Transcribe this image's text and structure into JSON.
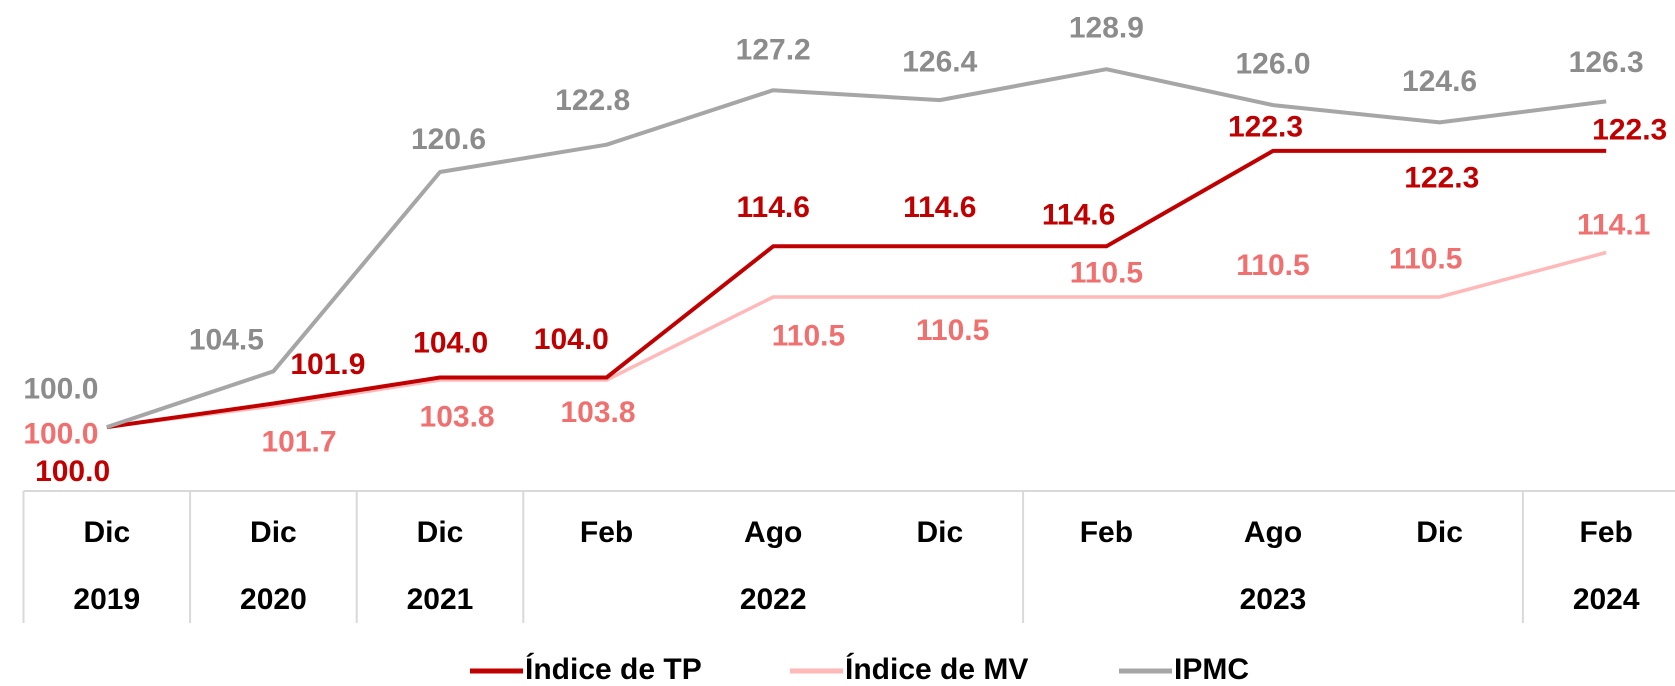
{
  "chart_data": {
    "type": "line",
    "categories": [
      "Dic",
      "Dic",
      "Dic",
      "Feb",
      "Ago",
      "Dic",
      "Feb",
      "Ago",
      "Dic",
      "Feb"
    ],
    "category_groups": [
      {
        "label": "2019",
        "start": 0,
        "end": 0
      },
      {
        "label": "2020",
        "start": 1,
        "end": 1
      },
      {
        "label": "2021",
        "start": 2,
        "end": 2
      },
      {
        "label": "2022",
        "start": 3,
        "end": 5
      },
      {
        "label": "2023",
        "start": 6,
        "end": 8
      },
      {
        "label": "2024",
        "start": 9,
        "end": 9
      }
    ],
    "series": [
      {
        "name": "Índice de MV",
        "color": "#ffb9b9",
        "label_color": "#f07070",
        "values": [
          100.0,
          101.7,
          103.8,
          103.8,
          110.5,
          110.5,
          110.5,
          110.5,
          110.5,
          114.1
        ],
        "value_labels": [
          "100.0",
          "101.7",
          "103.8",
          "103.8",
          "110.5",
          "110.5",
          "110.5",
          "110.5",
          "110.5",
          "114.1"
        ]
      },
      {
        "name": "Índice de TP",
        "color": "#c00000",
        "label_color": "#c00000",
        "values": [
          100.0,
          101.9,
          104.0,
          104.0,
          114.6,
          114.6,
          114.6,
          122.3,
          122.3,
          122.3
        ],
        "value_labels": [
          "100.0",
          "101.9",
          "104.0",
          "104.0",
          "114.6",
          "114.6",
          "114.6",
          "122.3",
          "122.3",
          "122.3"
        ]
      },
      {
        "name": "IPMC",
        "color": "#a6a6a6",
        "label_color": "#8c8c8c",
        "values": [
          100.0,
          104.5,
          120.6,
          122.8,
          127.2,
          126.4,
          128.9,
          126.0,
          124.6,
          126.3
        ],
        "value_labels": [
          "100.0",
          "104.5",
          "120.6",
          "122.8",
          "127.2",
          "126.4",
          "128.9",
          "126.0",
          "124.6",
          "126.3"
        ]
      }
    ],
    "ylim": [
      95,
      134
    ],
    "legend": "bottom"
  }
}
